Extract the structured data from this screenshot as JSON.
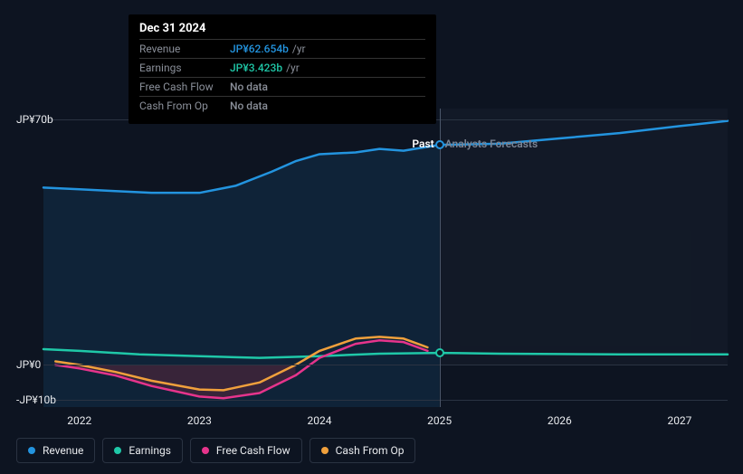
{
  "tooltip": {
    "title": "Dec 31 2024",
    "rows": [
      {
        "label": "Revenue",
        "value": "JP¥62.654b",
        "suffix": "/yr",
        "color": "#2394df",
        "nodata": false
      },
      {
        "label": "Earnings",
        "value": "JP¥3.423b",
        "suffix": "/yr",
        "color": "#1fc8a8",
        "nodata": false
      },
      {
        "label": "Free Cash Flow",
        "value": "No data",
        "suffix": "",
        "color": "#8a8f99",
        "nodata": true
      },
      {
        "label": "Cash From Op",
        "value": "No data",
        "suffix": "",
        "color": "#8a8f99",
        "nodata": true
      }
    ]
  },
  "chart": {
    "type": "line",
    "background_color": "#0d1421",
    "grid_color": "#2a3342",
    "text_color": "#e8eaed",
    "label_fontsize": 12,
    "y_axis": {
      "ticks": [
        {
          "value": 70,
          "label": "JP¥70b"
        },
        {
          "value": 0,
          "label": "JP¥0"
        },
        {
          "value": -10,
          "label": "-JP¥10b"
        }
      ],
      "min": -12,
      "max": 73
    },
    "x_axis": {
      "ticks": [
        {
          "value": 2022,
          "label": "2022"
        },
        {
          "value": 2023,
          "label": "2023"
        },
        {
          "value": 2024,
          "label": "2024"
        },
        {
          "value": 2025,
          "label": "2025"
        },
        {
          "value": 2026,
          "label": "2026"
        },
        {
          "value": 2027,
          "label": "2027"
        }
      ],
      "min": 2021.7,
      "max": 2027.4
    },
    "divider": {
      "x": 2025,
      "past_label": "Past",
      "past_color": "#ffffff",
      "forecast_label": "Analysts Forecasts",
      "forecast_color": "#7a8494"
    },
    "markers": [
      {
        "series": "revenue",
        "x": 2025,
        "y": 62.654,
        "color": "#2394df"
      },
      {
        "series": "earnings",
        "x": 2025,
        "y": 3.423,
        "color": "#1fc8a8"
      }
    ],
    "series": [
      {
        "key": "revenue",
        "name": "Revenue",
        "color": "#2394df",
        "width": 2.5,
        "area_fill": "rgba(35,148,223,0.12)",
        "points": [
          [
            2021.7,
            50.5
          ],
          [
            2022,
            50
          ],
          [
            2022.3,
            49.5
          ],
          [
            2022.6,
            49
          ],
          [
            2023,
            49
          ],
          [
            2023.3,
            51
          ],
          [
            2023.6,
            55
          ],
          [
            2023.8,
            58
          ],
          [
            2024,
            60
          ],
          [
            2024.3,
            60.5
          ],
          [
            2024.5,
            61.5
          ],
          [
            2024.7,
            61
          ],
          [
            2025,
            62.654
          ],
          [
            2025.5,
            63
          ],
          [
            2026,
            64.5
          ],
          [
            2026.5,
            66
          ],
          [
            2027,
            68
          ],
          [
            2027.4,
            69.5
          ]
        ]
      },
      {
        "key": "earnings",
        "name": "Earnings",
        "color": "#1fc8a8",
        "width": 2.5,
        "points": [
          [
            2021.7,
            4.5
          ],
          [
            2022,
            4
          ],
          [
            2022.5,
            3
          ],
          [
            2023,
            2.5
          ],
          [
            2023.5,
            2
          ],
          [
            2024,
            2.5
          ],
          [
            2024.5,
            3.2
          ],
          [
            2025,
            3.423
          ],
          [
            2025.5,
            3.2
          ],
          [
            2026,
            3.1
          ],
          [
            2026.5,
            3.0
          ],
          [
            2027,
            3.0
          ],
          [
            2027.4,
            3.0
          ]
        ]
      },
      {
        "key": "fcf",
        "name": "Free Cash Flow",
        "color": "#e6348c",
        "width": 2.5,
        "points": [
          [
            2021.8,
            0
          ],
          [
            2022,
            -1
          ],
          [
            2022.3,
            -3
          ],
          [
            2022.6,
            -6
          ],
          [
            2023,
            -9
          ],
          [
            2023.2,
            -9.5
          ],
          [
            2023.5,
            -8
          ],
          [
            2023.8,
            -3
          ],
          [
            2024,
            2
          ],
          [
            2024.3,
            6
          ],
          [
            2024.5,
            7
          ],
          [
            2024.7,
            6.5
          ],
          [
            2024.9,
            4
          ]
        ]
      },
      {
        "key": "cfo",
        "name": "Cash From Op",
        "color": "#f0a03c",
        "width": 2.5,
        "points": [
          [
            2021.8,
            1
          ],
          [
            2022,
            0
          ],
          [
            2022.3,
            -2
          ],
          [
            2022.6,
            -4.5
          ],
          [
            2023,
            -7
          ],
          [
            2023.2,
            -7.2
          ],
          [
            2023.5,
            -5
          ],
          [
            2023.8,
            0
          ],
          [
            2024,
            4
          ],
          [
            2024.3,
            7.5
          ],
          [
            2024.5,
            8
          ],
          [
            2024.7,
            7.5
          ],
          [
            2024.9,
            5
          ]
        ]
      }
    ]
  },
  "legend": [
    {
      "key": "revenue",
      "label": "Revenue",
      "color": "#2394df"
    },
    {
      "key": "earnings",
      "label": "Earnings",
      "color": "#1fc8a8"
    },
    {
      "key": "fcf",
      "label": "Free Cash Flow",
      "color": "#e6348c"
    },
    {
      "key": "cfo",
      "label": "Cash From Op",
      "color": "#f0a03c"
    }
  ]
}
